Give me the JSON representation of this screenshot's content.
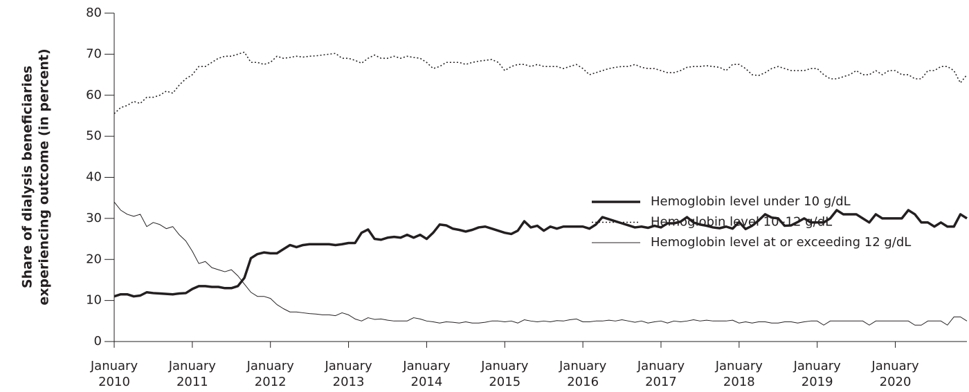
{
  "chart_data": {
    "type": "line",
    "ylabel": [
      "Share of dialysis beneficiaries",
      "experiencing outcome (in percent)"
    ],
    "x": [
      "2010-01",
      "2010-02",
      "2010-03",
      "2010-04",
      "2010-05",
      "2010-06",
      "2010-07",
      "2010-08",
      "2010-09",
      "2010-10",
      "2010-11",
      "2010-12",
      "2011-01",
      "2011-02",
      "2011-03",
      "2011-04",
      "2011-05",
      "2011-06",
      "2011-07",
      "2011-08",
      "2011-09",
      "2011-10",
      "2011-11",
      "2011-12",
      "2012-01",
      "2012-02",
      "2012-03",
      "2012-04",
      "2012-05",
      "2012-06",
      "2012-07",
      "2012-08",
      "2012-09",
      "2012-10",
      "2012-11",
      "2012-12",
      "2013-01",
      "2013-02",
      "2013-03",
      "2013-04",
      "2013-05",
      "2013-06",
      "2013-07",
      "2013-08",
      "2013-09",
      "2013-10",
      "2013-11",
      "2013-12",
      "2014-01",
      "2014-02",
      "2014-03",
      "2014-04",
      "2014-05",
      "2014-06",
      "2014-07",
      "2014-08",
      "2014-09",
      "2014-10",
      "2014-11",
      "2014-12",
      "2015-01",
      "2015-02",
      "2015-03",
      "2015-04",
      "2015-05",
      "2015-06",
      "2015-07",
      "2015-08",
      "2015-09",
      "2015-10",
      "2015-11",
      "2015-12",
      "2016-01",
      "2016-02",
      "2016-03",
      "2016-04",
      "2016-05",
      "2016-06",
      "2016-07",
      "2016-08",
      "2016-09",
      "2016-10",
      "2016-11",
      "2016-12",
      "2017-01",
      "2017-02",
      "2017-03",
      "2017-04",
      "2017-05",
      "2017-06",
      "2017-07",
      "2017-08",
      "2017-09",
      "2017-10",
      "2017-11",
      "2017-12",
      "2018-01",
      "2018-02",
      "2018-03",
      "2018-04",
      "2018-05",
      "2018-06",
      "2018-07",
      "2018-08",
      "2018-09",
      "2018-10",
      "2018-11",
      "2018-12",
      "2019-01",
      "2019-02",
      "2019-03",
      "2019-04",
      "2019-05",
      "2019-06",
      "2019-07",
      "2019-08",
      "2019-09",
      "2019-10",
      "2019-11",
      "2019-12",
      "2020-01",
      "2020-02",
      "2020-03",
      "2020-04",
      "2020-05",
      "2020-06",
      "2020-07",
      "2020-08",
      "2020-09",
      "2020-10",
      "2020-11",
      "2020-12"
    ],
    "xticks": [
      {
        "value": "2010-01",
        "label": "January 2010"
      },
      {
        "value": "2011-01",
        "label": "January 2011"
      },
      {
        "value": "2012-01",
        "label": "January 2012"
      },
      {
        "value": "2013-01",
        "label": "January 2013"
      },
      {
        "value": "2014-01",
        "label": "January 2014"
      },
      {
        "value": "2015-01",
        "label": "January 2015"
      },
      {
        "value": "2016-01",
        "label": "January 2016"
      },
      {
        "value": "2017-01",
        "label": "January 2017"
      },
      {
        "value": "2018-01",
        "label": "January 2018"
      },
      {
        "value": "2019-01",
        "label": "January 2019"
      },
      {
        "value": "2020-01",
        "label": "January 2020"
      }
    ],
    "ylim": [
      0,
      80
    ],
    "yticks": [
      0,
      10,
      20,
      30,
      40,
      50,
      60,
      70,
      80
    ],
    "legend": "center right",
    "series": [
      {
        "name": "Hemoglobin level under 10 g/dL",
        "color": "#231f20",
        "width": 3.5,
        "dash": "none",
        "values": [
          11,
          11.5,
          11.5,
          11,
          11.2,
          12,
          11.8,
          11.7,
          11.6,
          11.5,
          11.7,
          11.8,
          12.8,
          13.5,
          13.5,
          13.3,
          13.3,
          13,
          13,
          13.5,
          15.5,
          20.3,
          21.3,
          21.7,
          21.5,
          21.5,
          22.5,
          23.5,
          23,
          23.5,
          23.7,
          23.7,
          23.7,
          23.7,
          23.5,
          23.7,
          24,
          24,
          26.5,
          27.3,
          25,
          24.8,
          25.3,
          25.5,
          25.3,
          26,
          25.3,
          26,
          25,
          26.5,
          28.5,
          28.3,
          27.5,
          27.2,
          26.8,
          27.2,
          27.8,
          28,
          27.5,
          27,
          26.5,
          26.2,
          27,
          29.3,
          27.8,
          28.2,
          27,
          28,
          27.5,
          28,
          28,
          28,
          28,
          27.5,
          28.5,
          30.3,
          29.8,
          29.3,
          28.8,
          28.3,
          27.8,
          28,
          27.7,
          28.2,
          27.8,
          28.8,
          28.8,
          29.2,
          30.3,
          29,
          28.5,
          28.2,
          27.8,
          27.6,
          28,
          27.5,
          29.1,
          27.4,
          28.2,
          29.5,
          31,
          30.2,
          30,
          28.2,
          28.3,
          29.1,
          30,
          29,
          29,
          29,
          30,
          32,
          31,
          31,
          31,
          30,
          29,
          31,
          30,
          30,
          30,
          30,
          32,
          31,
          29,
          29,
          28,
          29,
          28,
          28,
          31,
          30
        ]
      },
      {
        "name": "Hemoglobin level 10–12 g/dL",
        "color": "#231f20",
        "width": 1.6,
        "dash": "2 3",
        "values": [
          55.5,
          57,
          57.5,
          58.5,
          58,
          59.5,
          59.5,
          60,
          61,
          60.5,
          62.5,
          64,
          65,
          67,
          67,
          68,
          69,
          69.5,
          69.5,
          70,
          70.5,
          68,
          68,
          67.5,
          68,
          69.5,
          69,
          69.2,
          69.5,
          69.3,
          69.5,
          69.6,
          69.8,
          70,
          70.2,
          69,
          69,
          68.5,
          67.8,
          69,
          69.8,
          69,
          69,
          69.5,
          69,
          69.5,
          69.2,
          69,
          68,
          66.5,
          67,
          68,
          68,
          68,
          67.5,
          68,
          68.3,
          68.5,
          68.7,
          68,
          66,
          67,
          67.5,
          67.5,
          67,
          67.5,
          67,
          67,
          67,
          66.5,
          67,
          67.5,
          66.5,
          65,
          65.5,
          66,
          66.5,
          66.8,
          67,
          67,
          67.5,
          66.8,
          66.5,
          66.5,
          66,
          65.5,
          65.5,
          66,
          66.8,
          67,
          67,
          67.2,
          67,
          66.8,
          66,
          67.5,
          67.5,
          66.5,
          65,
          64.8,
          65.5,
          66.5,
          67,
          66.5,
          66,
          66,
          66,
          66.5,
          66.5,
          65,
          64,
          64,
          64.5,
          65,
          66,
          65,
          65,
          66,
          65,
          66,
          66,
          65,
          65,
          64,
          64,
          66,
          66,
          67,
          67,
          66,
          63,
          65
        ]
      },
      {
        "name": "Hemoglobin level at or exceeding 12 g/dL",
        "color": "#231f20",
        "width": 1,
        "dash": "none",
        "values": [
          34,
          32,
          31,
          30.5,
          31,
          28,
          29,
          28.5,
          27.5,
          28,
          26,
          24.5,
          22,
          19,
          19.5,
          18,
          17.5,
          17,
          17.5,
          16,
          14,
          12,
          11,
          11,
          10.5,
          9,
          8,
          7.2,
          7.2,
          7,
          6.8,
          6.7,
          6.5,
          6.5,
          6.3,
          7,
          6.5,
          5.5,
          5,
          5.8,
          5.4,
          5.5,
          5.2,
          5,
          5,
          5,
          5.8,
          5.5,
          5,
          4.8,
          4.5,
          4.8,
          4.7,
          4.5,
          4.8,
          4.5,
          4.5,
          4.7,
          5,
          5,
          4.8,
          5,
          4.5,
          5.3,
          5,
          4.8,
          5,
          4.8,
          5.1,
          5,
          5.3,
          5.5,
          4.8,
          4.8,
          5,
          5,
          5.2,
          5,
          5.3,
          5,
          4.7,
          5,
          4.5,
          4.8,
          5,
          4.5,
          5,
          4.8,
          5,
          5.3,
          5,
          5.2,
          5,
          5,
          5,
          5.2,
          4.5,
          4.8,
          4.5,
          4.8,
          4.8,
          4.5,
          4.5,
          4.8,
          4.8,
          4.5,
          4.8,
          5,
          5,
          4,
          5,
          5,
          5,
          5,
          5,
          5,
          4,
          5,
          5,
          5,
          5,
          5,
          5,
          4,
          4,
          5,
          5,
          5,
          4,
          6,
          6,
          5
        ]
      }
    ]
  }
}
